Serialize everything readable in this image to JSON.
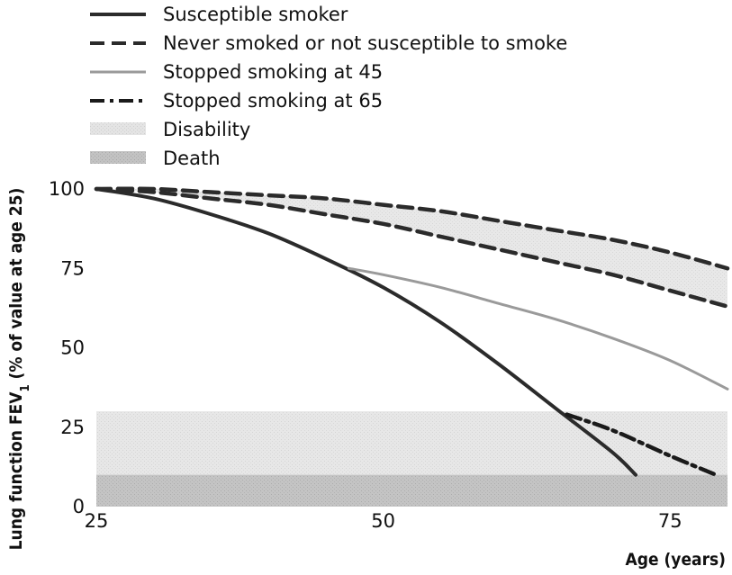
{
  "chart_data": {
    "type": "line",
    "xlabel": "Age (years)",
    "ylabel_main": "Lung function FEV",
    "ylabel_sub": "1",
    "ylabel_tail": " (% of value at age 25)",
    "xlim": [
      25,
      80
    ],
    "ylim": [
      0,
      100
    ],
    "x_ticks": [
      25,
      50,
      75
    ],
    "y_ticks": [
      0,
      25,
      50,
      75,
      100
    ],
    "legend": [
      {
        "label": "Susceptible smoker",
        "style": "solid",
        "color": "#2b2b2b"
      },
      {
        "label": "Never smoked or not susceptible to smoke",
        "style": "dashed",
        "color": "#2b2b2b"
      },
      {
        "label": "Stopped smoking at 45",
        "style": "solid",
        "color": "#9a9a9a"
      },
      {
        "label": "Stopped smoking at 65",
        "style": "dashdot",
        "color": "#1a1a1a"
      },
      {
        "label": "Disability",
        "style": "band",
        "color": "#e6e6e6"
      },
      {
        "label": "Death",
        "style": "band",
        "color": "#c4c4c4"
      }
    ],
    "series": [
      {
        "name": "Susceptible smoker",
        "x": [
          25,
          30,
          35,
          40,
          45,
          50,
          55,
          60,
          65,
          70,
          72
        ],
        "y": [
          100,
          97,
          92,
          86,
          78,
          69,
          58,
          45,
          31,
          17,
          10
        ]
      },
      {
        "name": "Never smoked or not susceptible to smoke",
        "x": [
          25,
          30,
          35,
          40,
          45,
          50,
          55,
          60,
          65,
          70,
          75,
          80
        ],
        "y": [
          100,
          100,
          99,
          98,
          97,
          95,
          93,
          90,
          87,
          84,
          80,
          75
        ]
      },
      {
        "name": "Never smoked or not susceptible to smoke",
        "x": [
          25,
          30,
          35,
          40,
          45,
          50,
          55,
          60,
          65,
          70,
          75,
          80
        ],
        "y": [
          100,
          99,
          97,
          95,
          92,
          89,
          85,
          81,
          77,
          73,
          68,
          63
        ]
      },
      {
        "name": "Stopped smoking at 45",
        "x": [
          47,
          50,
          55,
          60,
          65,
          70,
          75,
          80
        ],
        "y": [
          75,
          73,
          69,
          64,
          59,
          53,
          46,
          37
        ]
      },
      {
        "name": "Stopped smoking at 65",
        "x": [
          66,
          70,
          75,
          79
        ],
        "y": [
          29,
          24,
          16,
          10
        ]
      }
    ],
    "bands": [
      {
        "name": "Disability",
        "y": [
          0,
          30
        ]
      },
      {
        "name": "Death",
        "y": [
          0,
          10
        ]
      }
    ],
    "grid": false,
    "legend_placement": "top-left"
  }
}
